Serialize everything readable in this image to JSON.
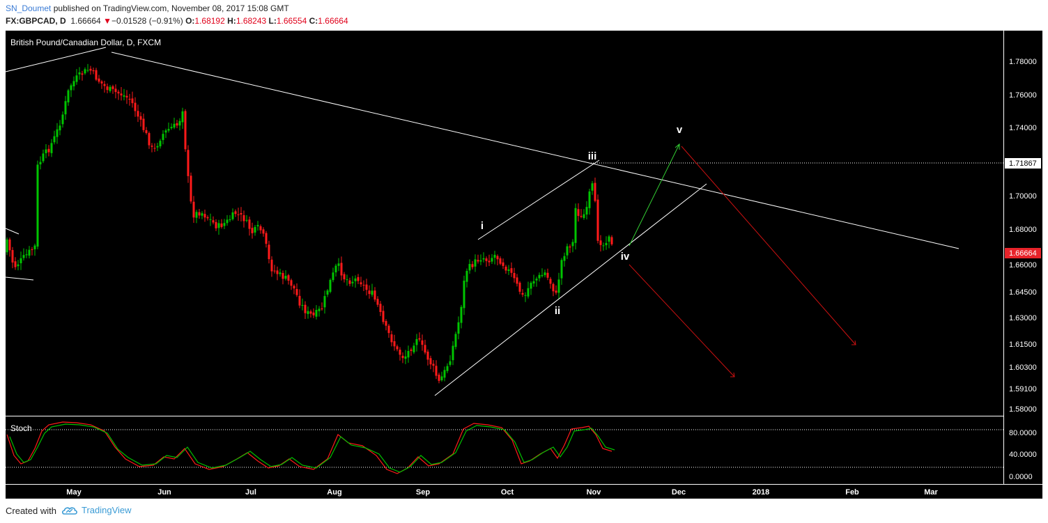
{
  "header": {
    "username": "SN_Doumet",
    "published_text": "published on TradingView.com, November 08, 2017 15:08 GMT",
    "symbol": "FX:GBPCAD, D",
    "last": "1.66664",
    "change": "−0.01528 (−0.91%)",
    "o_label": "O:",
    "o_value": "1.68192",
    "h_label": "H:",
    "h_value": "1.68243",
    "l_label": "L:",
    "l_value": "1.66554",
    "c_label": "C:",
    "c_value": "1.66664"
  },
  "footer": {
    "created_with": "Created with",
    "brand": "TradingView"
  },
  "chart_data": [
    {
      "type": "candlestick",
      "title": "British Pound/Canadian Dollar, D, FXCM",
      "price_axis_ticks": [
        "1.78000",
        "1.76000",
        "1.74000",
        "1.71867",
        "1.70000",
        "1.68000",
        "1.66664",
        "1.66000",
        "1.64500",
        "1.63000",
        "1.61500",
        "1.60300",
        "1.59100",
        "1.58000"
      ],
      "time_axis_labels": [
        "May",
        "Jun",
        "Jul",
        "Aug",
        "Sep",
        "Oct",
        "Nov",
        "Dec",
        "2018",
        "Feb",
        "Mar"
      ],
      "last_price": 1.66664,
      "marked_price": 1.71867,
      "wave_labels": [
        "i",
        "ii",
        "iii",
        "iv",
        "v"
      ],
      "colors": {
        "up": "#00c400",
        "down": "#ff1a1a",
        "background": "#000000",
        "last_price_tag": "#e8232a"
      }
    },
    {
      "type": "line",
      "title": "Stoch",
      "y_ticks": [
        "80.0000",
        "40.0000",
        "0.0000"
      ],
      "bands": [
        80,
        20
      ],
      "series": [
        {
          "color": "#ff1a1a"
        },
        {
          "color": "#00c000"
        }
      ]
    }
  ]
}
